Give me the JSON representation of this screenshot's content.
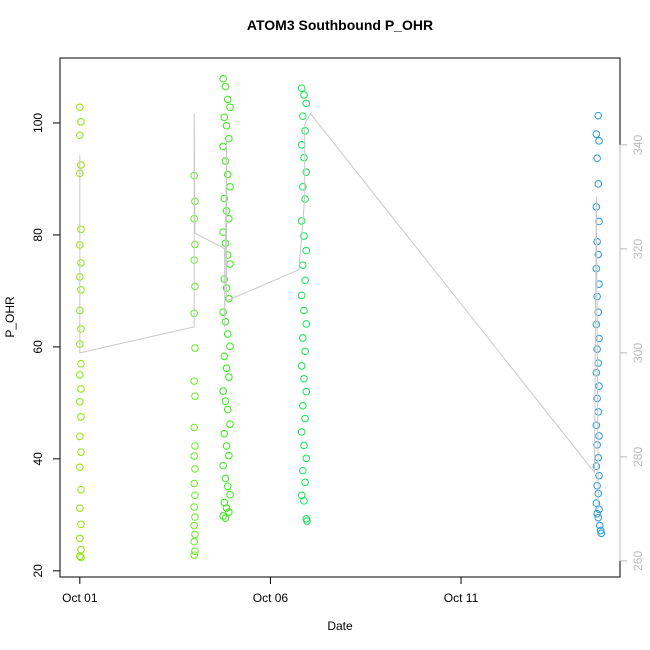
{
  "chart_data": {
    "type": "scatter",
    "title": "ATOM3 Southbound P_OHR",
    "x_label": "Date",
    "y_label": "P_OHR",
    "xlim": [
      -0.52,
      14.17
    ],
    "xticks": [
      {
        "value": 0,
        "label": "Oct 01"
      },
      {
        "value": 5,
        "label": "Oct 06"
      },
      {
        "value": 10,
        "label": "Oct 11"
      }
    ],
    "ylim": [
      18.9,
      111.6
    ],
    "yticks": [
      20,
      40,
      60,
      80,
      100
    ],
    "y2lim": [
      256.9,
      356.7
    ],
    "y2ticks": [
      260,
      280,
      300,
      320,
      340
    ],
    "y2_color": "#bbbbbb",
    "series": [
      {
        "color": "#8ce600",
        "x": [
          0,
          0.03,
          0,
          0.03,
          0,
          0.03,
          0,
          0.03,
          0,
          0.03,
          0,
          0.03,
          0,
          0.03,
          0,
          0.03,
          0,
          0.03,
          0,
          0.03,
          0,
          0.03,
          0,
          0.03,
          0,
          0.03,
          0,
          0.03
        ],
        "values": [
          102.8,
          100.2,
          97.8,
          92.5,
          91,
          81,
          78.2,
          75,
          72.5,
          70.2,
          66.5,
          63.2,
          60.5,
          57,
          55,
          52.5,
          50.2,
          47.5,
          44,
          41.2,
          38.5,
          34.5,
          31.2,
          28.3,
          25.8,
          23.8,
          22.6,
          22.4
        ]
      },
      {
        "color": "#66ee22",
        "x": [
          3.0,
          3.02,
          3.0,
          3.02,
          3.0,
          3.02,
          3.0,
          3.02,
          3.0,
          3.02,
          3.0,
          3.02,
          3.0,
          3.02,
          3.0,
          3.02,
          3.0,
          3.02,
          3.0,
          3.02,
          3.0,
          3.02,
          3.0
        ],
        "values": [
          90.6,
          86,
          82.9,
          78.3,
          75.5,
          70.8,
          66,
          59.8,
          53.9,
          51.2,
          45.6,
          42.3,
          40.5,
          38.2,
          35.6,
          33.5,
          31.4,
          29.6,
          28.1,
          26.5,
          25.2,
          23.5,
          22.8
        ]
      },
      {
        "color": "#33ee11",
        "x": [
          3.76,
          3.82,
          3.88,
          3.94,
          3.79,
          3.85,
          3.91,
          3.76,
          3.82,
          3.88,
          3.94,
          3.79,
          3.85,
          3.91,
          3.76,
          3.82,
          3.88,
          3.94,
          3.79,
          3.85,
          3.91,
          3.76,
          3.82,
          3.88,
          3.94,
          3.79,
          3.85,
          3.91,
          3.76,
          3.82,
          3.88,
          3.94,
          3.79,
          3.85,
          3.91,
          3.76,
          3.82,
          3.88,
          3.94,
          3.79,
          3.85,
          3.91,
          3.76,
          3.82
        ],
        "values": [
          107.9,
          106.5,
          104.2,
          102.8,
          101,
          99.5,
          97.2,
          95.8,
          93.2,
          90.8,
          88.6,
          86.5,
          84.3,
          82.9,
          80.5,
          78.5,
          76.4,
          74.8,
          72.1,
          70.5,
          68.6,
          66.2,
          64.5,
          62.3,
          60.1,
          58.3,
          56.2,
          54.6,
          52.1,
          50.3,
          48.8,
          46.2,
          44.5,
          42.3,
          40.6,
          38.8,
          36.5,
          35.1,
          33.6,
          32.2,
          31.2,
          30.5,
          29.8,
          29.4
        ]
      },
      {
        "color": "#11e655",
        "x": [
          5.82,
          5.88,
          5.94,
          5.85,
          5.91,
          5.82,
          5.88,
          5.94,
          5.85,
          5.91,
          5.82,
          5.88,
          5.94,
          5.85,
          5.91,
          5.82,
          5.88,
          5.94,
          5.85,
          5.91,
          5.82,
          5.88,
          5.94,
          5.85,
          5.91,
          5.82,
          5.88,
          5.94,
          5.85,
          5.91,
          5.82,
          5.88,
          5.94,
          5.96
        ],
        "values": [
          106.2,
          105,
          103.5,
          101.2,
          98.6,
          96.1,
          93.8,
          91.2,
          88.6,
          86.4,
          82.5,
          79.8,
          77.2,
          74.6,
          71.9,
          69.2,
          66.5,
          64.1,
          61.6,
          59.2,
          56.6,
          54.3,
          52,
          49.5,
          47.2,
          44.8,
          42.4,
          40.1,
          37.9,
          35.8,
          33.5,
          32.5,
          29.3,
          28.9
        ]
      },
      {
        "color": "#2299dd",
        "x": [
          13.6,
          13.55,
          13.62,
          13.57,
          13.6,
          13.55,
          13.62,
          13.57,
          13.6,
          13.55,
          13.62,
          13.57,
          13.6,
          13.55,
          13.62,
          13.57,
          13.6,
          13.55,
          13.62,
          13.57,
          13.6,
          13.55,
          13.62,
          13.57,
          13.6,
          13.55,
          13.62,
          13.57,
          13.6,
          13.55,
          13.62,
          13.57,
          13.6,
          13.64,
          13.66,
          13.68
        ],
        "values": [
          101.3,
          98,
          96.8,
          93.7,
          89.1,
          85,
          82.4,
          78.8,
          76.5,
          74,
          71.2,
          69,
          66.2,
          64,
          61.5,
          59.6,
          57.1,
          55.4,
          53,
          50.8,
          48.4,
          46,
          44.1,
          42.5,
          40.2,
          38.7,
          37,
          35.2,
          33.8,
          32.1,
          31,
          30.2,
          29.5,
          28.1,
          27.2,
          26.7
        ]
      },
      {
        "type": "line",
        "axis": "y2",
        "color": "#c8c8c8",
        "x": [
          0,
          0,
          3.0,
          3.0,
          3.02,
          3.8,
          3.8,
          3.85,
          3.85,
          5.75,
          5.9,
          5.9,
          6.05,
          13.5,
          13.55,
          13.6
        ],
        "values": [
          338,
          300,
          305,
          346,
          323,
          320,
          305,
          341,
          310,
          316,
          330,
          344,
          346,
          277,
          330,
          270
        ]
      }
    ]
  }
}
